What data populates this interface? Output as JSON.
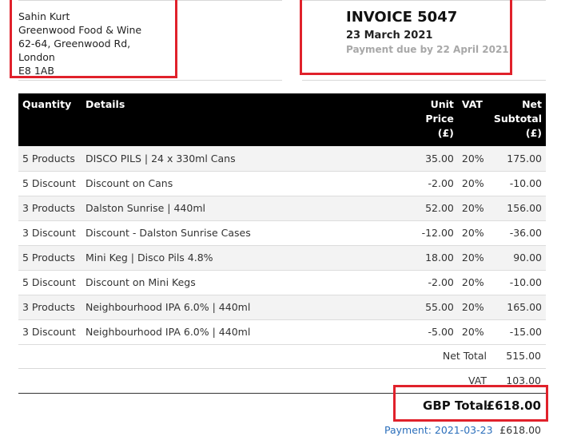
{
  "customer": {
    "name": "Sahin Kurt",
    "company": "Greenwood Food & Wine",
    "street": "62-64, Greenwood Rd,",
    "city": "London",
    "postcode": "E8 1AB"
  },
  "invoice": {
    "title": "INVOICE 5047",
    "date": "23 March 2021",
    "due": "Payment due by 22 April 2021"
  },
  "table": {
    "headers": {
      "quantity": "Quantity",
      "details": "Details",
      "unit_price": [
        "Unit",
        "Price",
        "(£)"
      ],
      "vat": "VAT",
      "net_subtotal": [
        "Net",
        "Subtotal",
        "(£)"
      ]
    },
    "rows": [
      {
        "qty": "5 Products",
        "details": "DISCO PILS | 24 x 330ml Cans",
        "unit": "35.00",
        "vat": "20%",
        "net": "175.00"
      },
      {
        "qty": "5 Discount",
        "details": "Discount on Cans",
        "unit": "-2.00",
        "vat": "20%",
        "net": "-10.00"
      },
      {
        "qty": "3 Products",
        "details": "Dalston Sunrise | 440ml",
        "unit": "52.00",
        "vat": "20%",
        "net": "156.00"
      },
      {
        "qty": "3 Discount",
        "details": "Discount - Dalston Sunrise Cases",
        "unit": "-12.00",
        "vat": "20%",
        "net": "-36.00"
      },
      {
        "qty": "5 Products",
        "details": "Mini Keg | Disco Pils 4.8%",
        "unit": "18.00",
        "vat": "20%",
        "net": "90.00"
      },
      {
        "qty": "5 Discount",
        "details": "Discount on Mini Kegs",
        "unit": "-2.00",
        "vat": "20%",
        "net": "-10.00"
      },
      {
        "qty": "3 Products",
        "details": "Neighbourhood IPA 6.0% | 440ml",
        "unit": "55.00",
        "vat": "20%",
        "net": "165.00"
      },
      {
        "qty": "3 Discount",
        "details": "Neighbourhood IPA 6.0% | 440ml",
        "unit": "-5.00",
        "vat": "20%",
        "net": "-15.00"
      }
    ]
  },
  "totals": {
    "net_label": "Net Total",
    "net_value": "515.00",
    "vat_label": "VAT",
    "vat_value": "103.00",
    "gbp_label": "GBP Total",
    "gbp_value": "£618.00",
    "payment_label": "Payment: 2021-03-23",
    "payment_value": "£618.00"
  },
  "colors": {
    "highlight_box": "#e0212b",
    "header_bg": "#000000",
    "link": "#2a6ebb"
  }
}
